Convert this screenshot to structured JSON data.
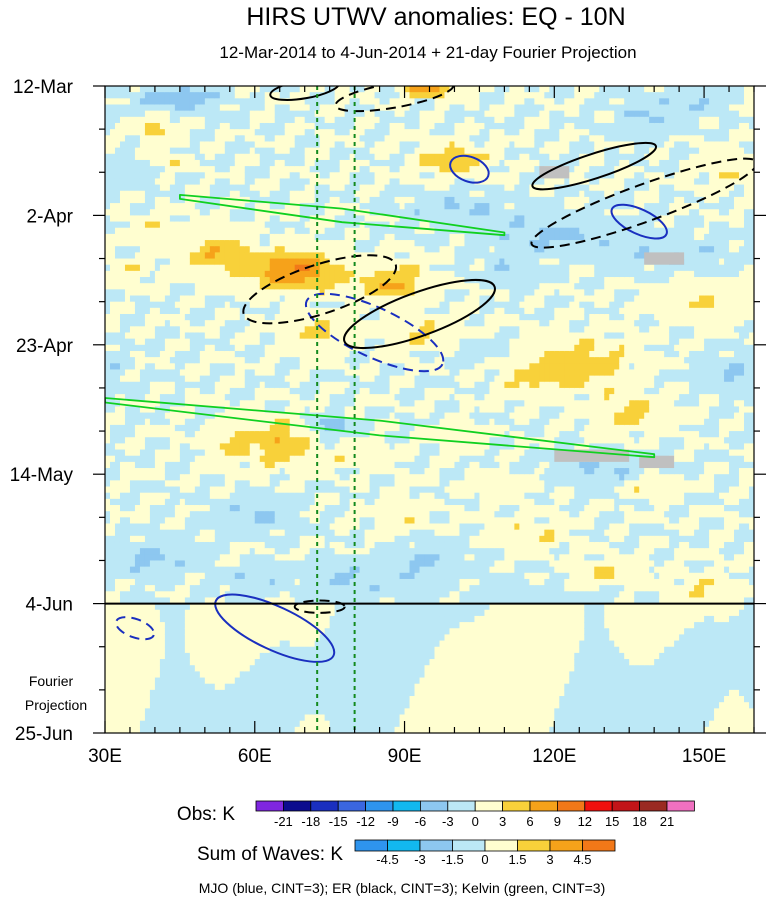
{
  "chart_data": {
    "type": "heatmap",
    "title": "HIRS UTWV anomalies: EQ - 10N",
    "subtitle": "12-Mar-2014 to 4-Jun-2014 + 21-day Fourier Projection",
    "x_axis": {
      "range": [
        30,
        160
      ],
      "ticks": [
        30,
        60,
        90,
        120,
        150
      ],
      "tick_labels": [
        "30E",
        "60E",
        "90E",
        "120E",
        "150E"
      ],
      "minor_step": 5
    },
    "y_axis": {
      "range_days": [
        0,
        105
      ],
      "ticks": [
        0,
        21,
        42,
        63,
        84,
        105
      ],
      "tick_labels": [
        "12-Mar",
        "2-Apr",
        "23-Apr",
        "14-May",
        "4-Jun",
        "25-Jun"
      ],
      "minor_step": 7
    },
    "projection_start_day": 84,
    "projection_label": [
      "Fourier",
      "Projection"
    ],
    "reference_lines_lon": [
      72.5,
      80
    ],
    "obs_colorbar": {
      "label": "Obs: K",
      "levels": [
        "-21",
        "-18",
        "-15",
        "-12",
        "-9",
        "-6",
        "-3",
        "0",
        "3",
        "6",
        "9",
        "12",
        "15",
        "18",
        "21"
      ],
      "colors": [
        "#7f26e0",
        "#0c0c8e",
        "#1a2fbf",
        "#3a66e0",
        "#2e94ee",
        "#12b8ef",
        "#8dc7f0",
        "#bce8f6",
        "#fffed0",
        "#f8d13a",
        "#f6a21a",
        "#f27818",
        "#f0100e",
        "#c21418",
        "#9a2a22",
        "#f070c0"
      ]
    },
    "waves_colorbar": {
      "label": "Sum of Waves: K",
      "levels": [
        "-4.5",
        "-3",
        "-1.5",
        "0",
        "1.5",
        "3",
        "4.5"
      ],
      "colors": [
        "#2e94ee",
        "#12b8ef",
        "#8dc7f0",
        "#bce8f6",
        "#fffed0",
        "#f8d13a",
        "#f6a21a",
        "#f27818"
      ]
    },
    "footer": "MJO (blue, CINT=3); ER (black, CINT=3); Kelvin (green, CINT=3)",
    "wave_contours": [
      {
        "wave": "MJO",
        "color": "#1a2fbf",
        "sign": "+",
        "center": [
          103,
          13.5
        ],
        "rx": 4,
        "ry": 2,
        "angle_deg": 20
      },
      {
        "wave": "MJO",
        "color": "#1a2fbf",
        "sign": "+",
        "center": [
          137,
          22
        ],
        "rx": 6,
        "ry": 2,
        "angle_deg": 25
      },
      {
        "wave": "MJO",
        "color": "#1a2fbf",
        "sign": "-",
        "center": [
          84,
          40
        ],
        "rx": 15,
        "ry": 4,
        "angle_deg": 25
      },
      {
        "wave": "MJO",
        "color": "#1a2fbf",
        "sign": "+",
        "center": [
          64,
          88
        ],
        "rx": 13,
        "ry": 3.5,
        "angle_deg": 25
      },
      {
        "wave": "MJO",
        "color": "#1a2fbf",
        "sign": "-",
        "center": [
          36,
          88
        ],
        "rx": 4,
        "ry": 1.5,
        "angle_deg": 20
      },
      {
        "wave": "ER",
        "color": "#000000",
        "sign": "+",
        "center": [
          70,
          0.5
        ],
        "rx": 7,
        "ry": 1.5,
        "angle_deg": -10
      },
      {
        "wave": "ER",
        "color": "#000000",
        "sign": "-",
        "center": [
          88,
          1.5
        ],
        "rx": 12,
        "ry": 2,
        "angle_deg": -10
      },
      {
        "wave": "ER",
        "color": "#000000",
        "sign": "+",
        "center": [
          128,
          13
        ],
        "rx": 13,
        "ry": 2,
        "angle_deg": -18
      },
      {
        "wave": "ER",
        "color": "#000000",
        "sign": "-",
        "center": [
          138,
          19
        ],
        "rx": 24,
        "ry": 3,
        "angle_deg": -20
      },
      {
        "wave": "ER",
        "color": "#000000",
        "sign": "-",
        "center": [
          73,
          33
        ],
        "rx": 16,
        "ry": 4,
        "angle_deg": -18
      },
      {
        "wave": "ER",
        "color": "#000000",
        "sign": "+",
        "center": [
          93,
          37
        ],
        "rx": 16,
        "ry": 3.5,
        "angle_deg": -20
      },
      {
        "wave": "ER",
        "color": "#000000",
        "sign": "-",
        "center": [
          73,
          84.5
        ],
        "rx": 5,
        "ry": 1,
        "angle_deg": 0
      }
    ],
    "kelvin_bands": [
      {
        "from": [
          45,
          18
        ],
        "to": [
          110,
          24
        ],
        "width_days": 2.2
      },
      {
        "from": [
          30,
          51
        ],
        "to": [
          140,
          60
        ],
        "width_days": 2.4
      }
    ],
    "missing_data_patches": [
      {
        "lon": [
          117,
          123
        ],
        "day": [
          13,
          15
        ]
      },
      {
        "lon": [
          138,
          146
        ],
        "day": [
          27,
          29
        ]
      },
      {
        "lon": [
          120,
          135
        ],
        "day": [
          59,
          61
        ]
      },
      {
        "lon": [
          137,
          144
        ],
        "day": [
          60,
          62
        ]
      }
    ]
  }
}
